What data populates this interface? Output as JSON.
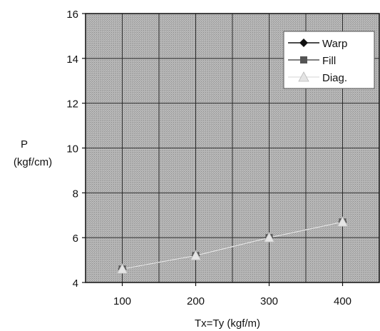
{
  "colors": {
    "plot_background": "#aeaeae",
    "grid": "#2a2a2a",
    "warp": "#111111",
    "fill": "#555555",
    "diag": "#e4e4e4",
    "legend_bg": "#ffffff"
  },
  "chart_data": {
    "type": "line",
    "xlabel": "Tx=Ty (kgf/m)",
    "ylabel_line1": "P",
    "ylabel_line2": "(kgf/cm)",
    "xlim": [
      50,
      450
    ],
    "ylim": [
      4,
      16
    ],
    "x_ticks": [
      100,
      200,
      300,
      400
    ],
    "y_ticks": [
      4,
      6,
      8,
      10,
      12,
      14,
      16
    ],
    "x_tick_labels": [
      "100",
      "200",
      "300",
      "400"
    ],
    "y_tick_labels": [
      "4",
      "6",
      "8",
      "10",
      "12",
      "14",
      "16"
    ],
    "x": [
      100,
      200,
      300,
      400
    ],
    "grid": true,
    "legend_position": "top-right",
    "series": [
      {
        "name": "Warp",
        "marker": "diamond",
        "color_key": "warp",
        "values": [
          4.6,
          5.2,
          6.0,
          6.7
        ]
      },
      {
        "name": "Fill",
        "marker": "square",
        "color_key": "fill",
        "values": [
          4.6,
          5.2,
          6.0,
          6.7
        ]
      },
      {
        "name": "Diag.",
        "marker": "triangle",
        "color_key": "diag",
        "values": [
          4.6,
          5.2,
          6.0,
          6.7
        ]
      }
    ]
  }
}
